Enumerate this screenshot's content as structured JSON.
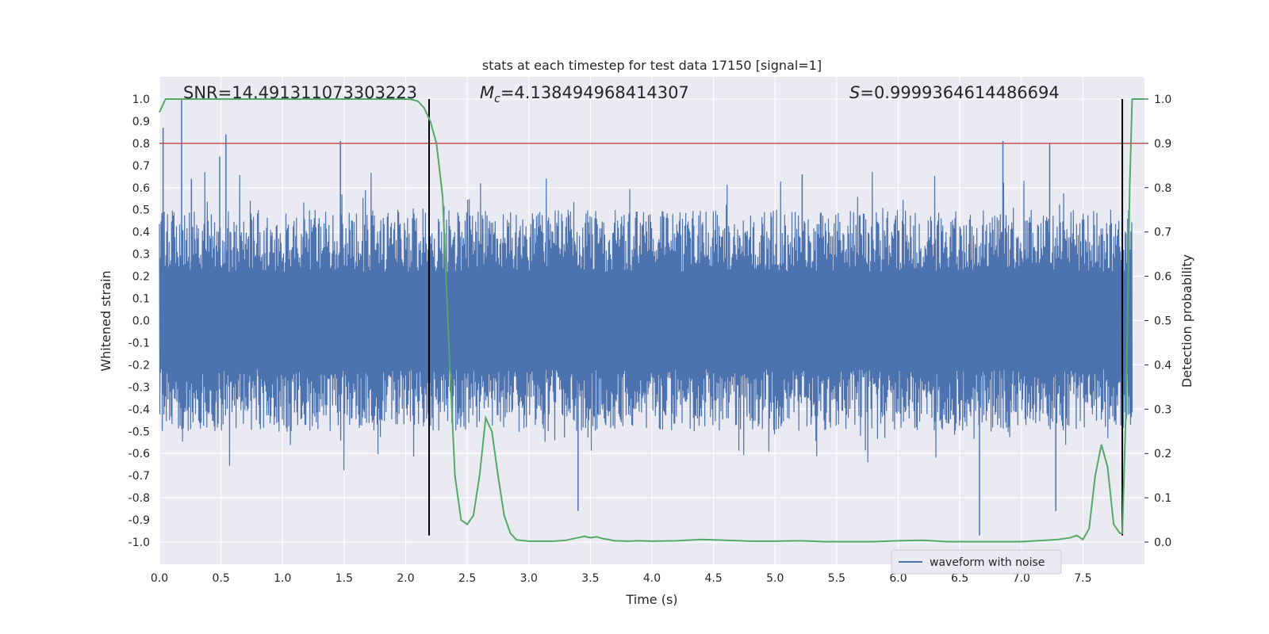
{
  "chart_data": {
    "type": "line",
    "title": "stats at each timestep for test data 17150 [signal=1]",
    "xlabel": "Time (s)",
    "ylabel": "Whitened strain",
    "y2label": "Detection probability",
    "xlim": [
      0.0,
      8.0
    ],
    "ylim": [
      -1.1,
      1.1
    ],
    "y2lim": [
      -0.05,
      1.05
    ],
    "x_ticks": [
      0.0,
      0.5,
      1.0,
      1.5,
      2.0,
      2.5,
      3.0,
      3.5,
      4.0,
      4.5,
      5.0,
      5.5,
      6.0,
      6.5,
      7.0,
      7.5
    ],
    "y_ticks": [
      -1.0,
      -0.9,
      -0.8,
      -0.7,
      -0.6,
      -0.5,
      -0.4,
      -0.3,
      -0.2,
      -0.1,
      0.0,
      0.1,
      0.2,
      0.3,
      0.4,
      0.5,
      0.6,
      0.7,
      0.8,
      0.9,
      1.0
    ],
    "y2_ticks": [
      0.0,
      0.1,
      0.2,
      0.3,
      0.4,
      0.5,
      0.6,
      0.7,
      0.8,
      0.9,
      1.0
    ],
    "grid": true,
    "legend_position": "lower-right",
    "annotations": {
      "snr": "SNR=14.491311073303223",
      "mc_symbol": "M",
      "mc_sub": "c",
      "mc_value": "=4.138494968414307",
      "s_symbol": "S",
      "s_value": "=0.9999364614486694"
    },
    "threshold_line": {
      "y2": 0.9,
      "color": "#c44e52"
    },
    "vertical_lines": [
      {
        "x": 2.19,
        "y_min": -0.97,
        "y_max": 1.0
      },
      {
        "x": 7.82,
        "y_min": -0.97,
        "y_max": 1.0
      }
    ],
    "series": [
      {
        "name": "waveform with noise",
        "axis": "left",
        "color": "#4c72b0",
        "description_envelope_peak": 0.8,
        "peak_spikes": [
          [
            0.03,
            0.87
          ],
          [
            0.18,
            1.0
          ],
          [
            0.26,
            0.64
          ],
          [
            0.49,
            0.74
          ],
          [
            0.54,
            0.84
          ],
          [
            1.47,
            0.81
          ],
          [
            3.4,
            -0.86
          ],
          [
            5.22,
            0.66
          ],
          [
            6.66,
            -0.97
          ],
          [
            6.85,
            0.81
          ],
          [
            7.23,
            0.8
          ],
          [
            7.28,
            -0.86
          ]
        ]
      },
      {
        "name": "",
        "axis": "right",
        "color": "#55a868",
        "x": [
          0.0,
          0.05,
          0.1,
          0.5,
          1.0,
          1.5,
          2.0,
          2.05,
          2.1,
          2.15,
          2.2,
          2.25,
          2.3,
          2.35,
          2.4,
          2.45,
          2.5,
          2.55,
          2.6,
          2.65,
          2.7,
          2.75,
          2.8,
          2.85,
          2.9,
          3.0,
          3.1,
          3.2,
          3.3,
          3.4,
          3.45,
          3.5,
          3.55,
          3.6,
          3.7,
          3.8,
          3.9,
          4.0,
          4.2,
          4.4,
          4.6,
          4.8,
          5.0,
          5.2,
          5.4,
          5.6,
          5.8,
          6.0,
          6.2,
          6.4,
          6.6,
          6.8,
          7.0,
          7.2,
          7.3,
          7.4,
          7.45,
          7.5,
          7.55,
          7.6,
          7.65,
          7.7,
          7.75,
          7.8,
          7.82,
          7.85,
          7.88,
          7.9,
          7.95,
          8.0
        ],
        "y": [
          0.97,
          1.0,
          1.0,
          1.0,
          1.0,
          1.0,
          1.0,
          0.999,
          0.995,
          0.98,
          0.95,
          0.9,
          0.78,
          0.45,
          0.15,
          0.05,
          0.04,
          0.06,
          0.15,
          0.28,
          0.25,
          0.15,
          0.06,
          0.02,
          0.005,
          0.002,
          0.002,
          0.002,
          0.004,
          0.01,
          0.013,
          0.01,
          0.012,
          0.008,
          0.003,
          0.002,
          0.003,
          0.002,
          0.003,
          0.006,
          0.004,
          0.002,
          0.002,
          0.003,
          0.001,
          0.001,
          0.001,
          0.003,
          0.004,
          0.001,
          0.001,
          0.001,
          0.001,
          0.004,
          0.006,
          0.01,
          0.015,
          0.006,
          0.03,
          0.15,
          0.22,
          0.17,
          0.04,
          0.02,
          0.02,
          0.3,
          0.8,
          1.0,
          1.0,
          1.0
        ]
      }
    ]
  }
}
